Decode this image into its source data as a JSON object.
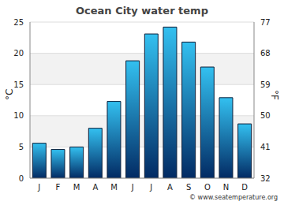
{
  "chart_data": {
    "type": "bar",
    "title": "Ocean City water temp",
    "source": "© www.seatemperature.org",
    "categories": [
      "J",
      "F",
      "M",
      "A",
      "M",
      "J",
      "J",
      "A",
      "S",
      "O",
      "N",
      "D"
    ],
    "values": [
      5.6,
      4.6,
      5.0,
      8.0,
      12.3,
      18.8,
      23.1,
      24.2,
      21.8,
      17.8,
      12.9,
      8.7
    ],
    "color": "#33c0f0",
    "y_label": "°C",
    "ylim": [
      0,
      25
    ],
    "yticks": [
      0,
      5,
      10,
      15,
      20,
      25
    ],
    "y2_label": "°F",
    "y2lim": [
      32,
      77
    ],
    "y2ticks": [
      32,
      41,
      50,
      59,
      68,
      77
    ],
    "grid": true
  }
}
